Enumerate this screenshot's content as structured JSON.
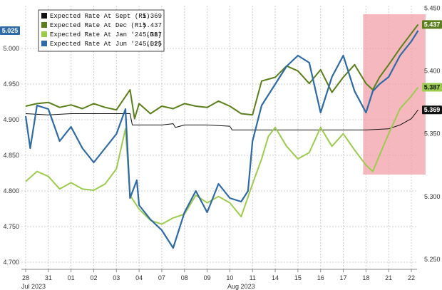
{
  "chart_data": {
    "type": "line",
    "x_dates": [
      "28",
      "31",
      "01",
      "02",
      "03",
      "04",
      "07",
      "08",
      "09",
      "10",
      "11",
      "14",
      "15",
      "16",
      "17",
      "18",
      "21",
      "22"
    ],
    "month_labels": [
      "Jul 2023",
      "Aug 2023"
    ],
    "left_axis": {
      "min": 4.69,
      "max": 5.06,
      "ticks": [
        4.7,
        4.75,
        4.8,
        4.85,
        4.9,
        4.95,
        5.0
      ]
    },
    "right_axis": {
      "min": 5.242,
      "max": 5.452,
      "ticks": [
        5.25,
        5.3,
        5.35,
        5.4,
        5.45
      ]
    },
    "highlight": {
      "from": 15.0,
      "to": 17.5,
      "color": "#f2a0a8"
    },
    "series": [
      {
        "name": "Expected Rate At Sept (R1)",
        "value": "5.369",
        "axis": "right",
        "color": "#111111",
        "points": [
          [
            0,
            5.366
          ],
          [
            1,
            5.365
          ],
          [
            2,
            5.366
          ],
          [
            3,
            5.366
          ],
          [
            4,
            5.366
          ],
          [
            4.6,
            5.366
          ],
          [
            4.7,
            5.357
          ],
          [
            5,
            5.357
          ],
          [
            6,
            5.357
          ],
          [
            6.5,
            5.358
          ],
          [
            6.6,
            5.355
          ],
          [
            7,
            5.357
          ],
          [
            8,
            5.357
          ],
          [
            9,
            5.356
          ],
          [
            9.1,
            5.353
          ],
          [
            10,
            5.353
          ],
          [
            11,
            5.353
          ],
          [
            12,
            5.353
          ],
          [
            13,
            5.353
          ],
          [
            14,
            5.353
          ],
          [
            15,
            5.353
          ],
          [
            16,
            5.354
          ],
          [
            16.5,
            5.357
          ],
          [
            17,
            5.362
          ],
          [
            17.3,
            5.369
          ]
        ]
      },
      {
        "name": "Expected Rate At Dec (R1)",
        "value": "5.437",
        "axis": "right",
        "color": "#5b7f1a",
        "points": [
          [
            0,
            5.372
          ],
          [
            0.5,
            5.374
          ],
          [
            1,
            5.375
          ],
          [
            1.5,
            5.371
          ],
          [
            2,
            5.373
          ],
          [
            2.5,
            5.37
          ],
          [
            3,
            5.374
          ],
          [
            3.5,
            5.371
          ],
          [
            4,
            5.369
          ],
          [
            4.6,
            5.385
          ],
          [
            4.8,
            5.362
          ],
          [
            5,
            5.374
          ],
          [
            5.5,
            5.366
          ],
          [
            6,
            5.372
          ],
          [
            6.5,
            5.37
          ],
          [
            7,
            5.374
          ],
          [
            7.5,
            5.372
          ],
          [
            8,
            5.371
          ],
          [
            8.5,
            5.376
          ],
          [
            9,
            5.372
          ],
          [
            9.5,
            5.366
          ],
          [
            10,
            5.365
          ],
          [
            10.4,
            5.392
          ],
          [
            11,
            5.395
          ],
          [
            11.5,
            5.404
          ],
          [
            12,
            5.4
          ],
          [
            12.5,
            5.39
          ],
          [
            13,
            5.401
          ],
          [
            13.5,
            5.383
          ],
          [
            14,
            5.395
          ],
          [
            14.5,
            5.405
          ],
          [
            15,
            5.39
          ],
          [
            15.3,
            5.385
          ],
          [
            15.6,
            5.395
          ],
          [
            16,
            5.405
          ],
          [
            16.5,
            5.418
          ],
          [
            17,
            5.43
          ],
          [
            17.3,
            5.437
          ]
        ]
      },
      {
        "name": "Expected Rate At Jan '24 (R1)",
        "value": "5.387",
        "axis": "right",
        "color": "#9ccc4e",
        "points": [
          [
            0,
            5.312
          ],
          [
            0.5,
            5.32
          ],
          [
            1,
            5.316
          ],
          [
            1.5,
            5.306
          ],
          [
            2,
            5.311
          ],
          [
            2.5,
            5.306
          ],
          [
            3,
            5.305
          ],
          [
            3.5,
            5.31
          ],
          [
            4,
            5.322
          ],
          [
            4.4,
            5.354
          ],
          [
            4.6,
            5.301
          ],
          [
            5,
            5.29
          ],
          [
            5.5,
            5.281
          ],
          [
            6,
            5.278
          ],
          [
            6.5,
            5.283
          ],
          [
            7,
            5.286
          ],
          [
            7.5,
            5.301
          ],
          [
            8,
            5.295
          ],
          [
            8.5,
            5.3
          ],
          [
            9,
            5.295
          ],
          [
            9.5,
            5.284
          ],
          [
            10,
            5.31
          ],
          [
            10.4,
            5.33
          ],
          [
            10.7,
            5.348
          ],
          [
            11,
            5.355
          ],
          [
            11.5,
            5.34
          ],
          [
            12,
            5.33
          ],
          [
            12.5,
            5.335
          ],
          [
            13,
            5.355
          ],
          [
            13.5,
            5.34
          ],
          [
            14,
            5.35
          ],
          [
            14.5,
            5.337
          ],
          [
            15,
            5.325
          ],
          [
            15.3,
            5.32
          ],
          [
            15.6,
            5.333
          ],
          [
            16,
            5.35
          ],
          [
            16.5,
            5.37
          ],
          [
            17,
            5.38
          ],
          [
            17.3,
            5.387
          ]
        ]
      },
      {
        "name": "Expected Rate At Jun '24 (L1)",
        "value": "5.025",
        "axis": "left",
        "color": "#2e6aa5",
        "points": [
          [
            0,
            4.905
          ],
          [
            0.2,
            4.86
          ],
          [
            0.5,
            4.92
          ],
          [
            1,
            4.915
          ],
          [
            1.5,
            4.87
          ],
          [
            2,
            4.89
          ],
          [
            2.5,
            4.86
          ],
          [
            3,
            4.84
          ],
          [
            3.5,
            4.86
          ],
          [
            4,
            4.88
          ],
          [
            4.4,
            4.915
          ],
          [
            4.6,
            4.79
          ],
          [
            4.9,
            4.815
          ],
          [
            5,
            4.78
          ],
          [
            5.5,
            4.76
          ],
          [
            6,
            4.745
          ],
          [
            6.5,
            4.72
          ],
          [
            7,
            4.77
          ],
          [
            7.5,
            4.8
          ],
          [
            8,
            4.77
          ],
          [
            8.5,
            4.81
          ],
          [
            9,
            4.79
          ],
          [
            9.5,
            4.785
          ],
          [
            9.8,
            4.8
          ],
          [
            10,
            4.87
          ],
          [
            10.4,
            4.92
          ],
          [
            11,
            4.95
          ],
          [
            11.5,
            4.975
          ],
          [
            12,
            4.99
          ],
          [
            12.5,
            4.98
          ],
          [
            13,
            4.91
          ],
          [
            13.5,
            4.96
          ],
          [
            14,
            4.99
          ],
          [
            14.5,
            4.94
          ],
          [
            15,
            4.91
          ],
          [
            15.3,
            4.94
          ],
          [
            15.6,
            4.95
          ],
          [
            16,
            4.96
          ],
          [
            16.5,
            4.99
          ],
          [
            17,
            5.01
          ],
          [
            17.3,
            5.025
          ]
        ]
      }
    ]
  }
}
